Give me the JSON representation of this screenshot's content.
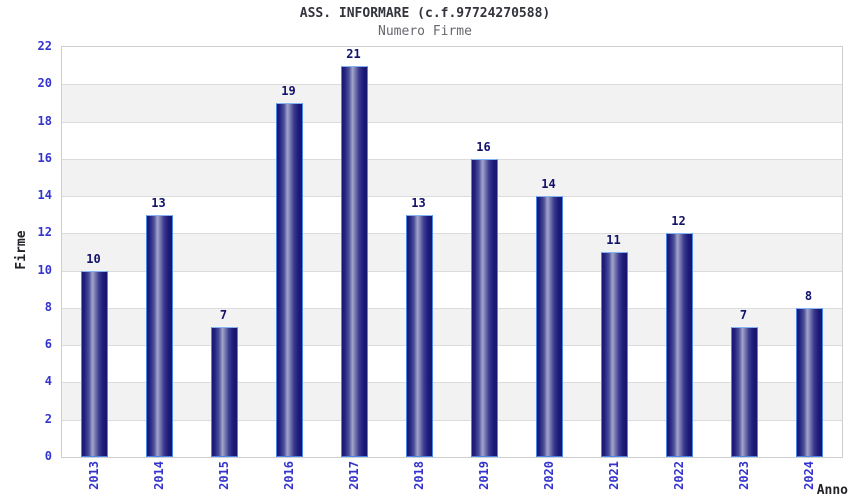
{
  "chart_data": {
    "type": "bar",
    "title": "ASS. INFORMARE (c.f.97724270588)",
    "subtitle": "Numero Firme",
    "xlabel": "Anno",
    "ylabel": "Firme",
    "categories": [
      "2013",
      "2014",
      "2015",
      "2016",
      "2017",
      "2018",
      "2019",
      "2020",
      "2021",
      "2022",
      "2023",
      "2024"
    ],
    "values": [
      10,
      13,
      7,
      19,
      21,
      13,
      16,
      14,
      11,
      12,
      7,
      8
    ],
    "ylim": [
      0,
      22
    ],
    "ytick_step": 2,
    "yticks": [
      "0",
      "2",
      "4",
      "6",
      "8",
      "10",
      "12",
      "14",
      "16",
      "18",
      "20",
      "22"
    ],
    "grid": true,
    "legend": "none",
    "colors": {
      "tick_label_blue": "#3434cd",
      "value_label_navy": "#12126b",
      "bar_dark": "#181874",
      "bar_highlight": "#a2a5cb",
      "bar_outline": "#4b86e8",
      "band_gray": "#f2f2f3",
      "band_white": "#ffffff",
      "gridline": "#dcdcdc",
      "plot_border": "#cfcfcf",
      "title_color": "#33333d",
      "subtitle_color": "#67676f",
      "axis_title_color": "#222228"
    }
  }
}
